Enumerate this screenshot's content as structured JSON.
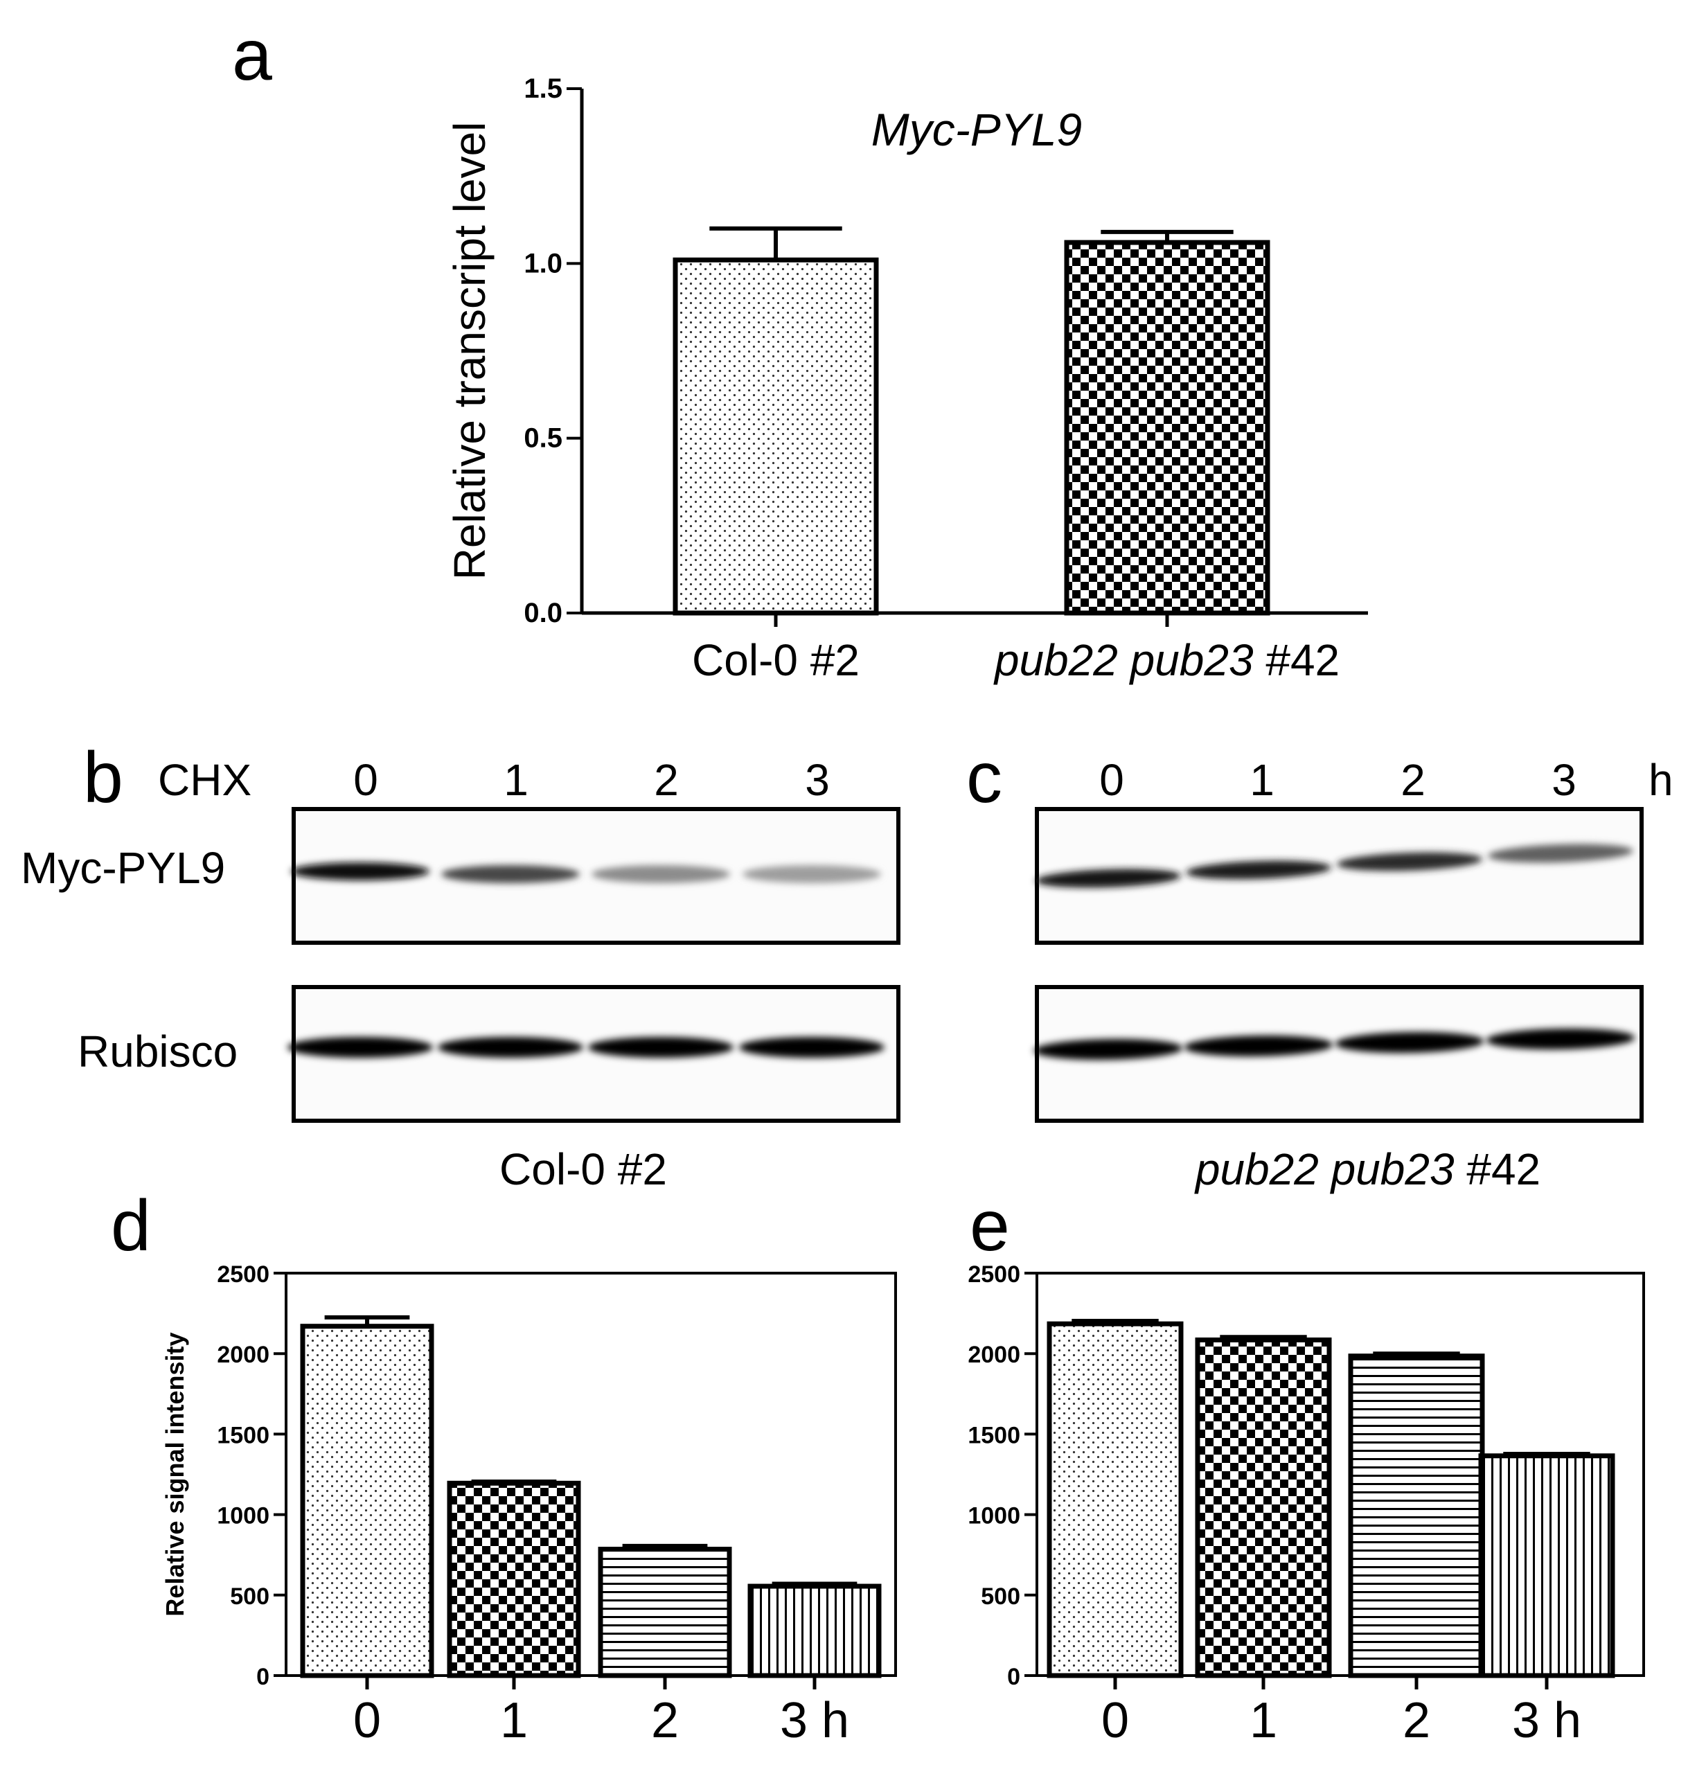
{
  "figure": {
    "panel_labels": {
      "a": "a",
      "b": "b",
      "c": "c",
      "d": "d",
      "e": "e"
    },
    "blots": {
      "chx_label": "CHX",
      "time_unit": "h",
      "lanes": [
        "0",
        "1",
        "2",
        "3"
      ],
      "row_labels": {
        "target": "Myc-PYL9",
        "loading": "Rubisco"
      },
      "left_genotype": "Col-0 #2",
      "right_genotype_italic": "pub22 pub23",
      "right_genotype_suffix": " #42",
      "left_band_intensity": [
        0.95,
        0.72,
        0.45,
        0.38
      ],
      "right_band_intensity": [
        0.92,
        0.88,
        0.84,
        0.62
      ],
      "loading_band_intensity": [
        1.0,
        1.0,
        1.0,
        1.0
      ]
    }
  },
  "chart_data": [
    {
      "id": "a",
      "type": "bar",
      "title": "Myc-PYL9",
      "ylabel": "Relative transcript level",
      "xlabel": "",
      "categories": [
        "Col-0 #2",
        "pub22 pub23 #42"
      ],
      "category_parts": [
        {
          "italic": "",
          "plain": "Col-0 #2"
        },
        {
          "italic": "pub22 pub23",
          "plain": " #42"
        }
      ],
      "values": [
        1.01,
        1.06
      ],
      "errors": [
        0.09,
        0.03
      ],
      "patterns": [
        "dots",
        "checker"
      ],
      "ylim": [
        0,
        1.5
      ],
      "yticks": [
        "0.0",
        "0.5",
        "1.0",
        "1.5"
      ],
      "ytick_values": [
        0,
        0.5,
        1.0,
        1.5
      ],
      "grid": false
    },
    {
      "id": "d",
      "type": "bar",
      "title": "",
      "ylabel": "Relative signal intensity",
      "xlabel": "",
      "categories": [
        "0",
        "1",
        "2",
        "3 h"
      ],
      "values": [
        2170,
        1195,
        785,
        555
      ],
      "errors": [
        55,
        10,
        20,
        15
      ],
      "patterns": [
        "dots",
        "checker",
        "hlines",
        "vlines"
      ],
      "ylim": [
        0,
        2500
      ],
      "yticks": [
        "0",
        "500",
        "1000",
        "1500",
        "2000",
        "2500"
      ],
      "ytick_values": [
        0,
        500,
        1000,
        1500,
        2000,
        2500
      ],
      "grid": false
    },
    {
      "id": "e",
      "type": "bar",
      "title": "",
      "ylabel": "",
      "xlabel": "",
      "categories": [
        "0",
        "1",
        "2",
        "3 h"
      ],
      "values": [
        2185,
        2085,
        1985,
        1365
      ],
      "errors": [
        18,
        18,
        15,
        12
      ],
      "patterns": [
        "dots",
        "checker",
        "hlines",
        "vlines"
      ],
      "ylim": [
        0,
        2500
      ],
      "yticks": [
        "0",
        "500",
        "1000",
        "1500",
        "2000",
        "2500"
      ],
      "ytick_values": [
        0,
        500,
        1000,
        1500,
        2000,
        2500
      ],
      "grid": false
    }
  ]
}
